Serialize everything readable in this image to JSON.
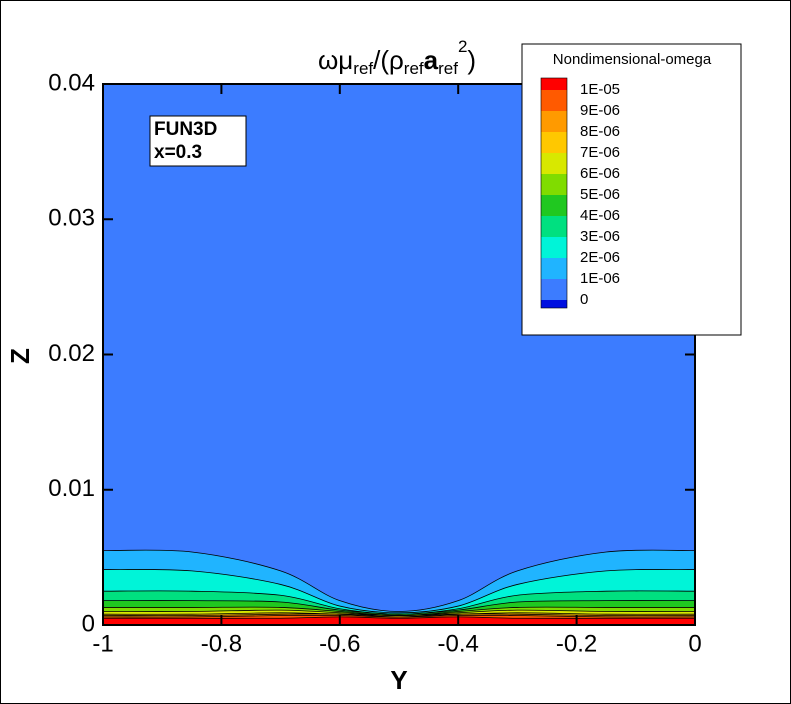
{
  "chart_data": {
    "type": "contour",
    "title_parts": [
      "ωμ",
      "ref",
      "/(ρ",
      "ref",
      "a",
      "ref",
      "2",
      ")"
    ],
    "x_label": "Y",
    "y_label": "Z",
    "xlim": [
      -1,
      0
    ],
    "ylim": [
      0,
      0.04
    ],
    "xticks": [
      -1,
      -0.8,
      -0.6,
      -0.4,
      -0.2,
      0
    ],
    "yticks": [
      0,
      0.01,
      0.02,
      0.03,
      0.04
    ],
    "annotation": [
      "FUN3D",
      "x=0.3"
    ],
    "legend_title": "Nondimensional-omega",
    "over_color": "#ff0000",
    "x": [
      -1,
      -0.85,
      -0.7,
      -0.6,
      -0.5,
      -0.4,
      -0.3,
      -0.15,
      0
    ],
    "levels": [
      {
        "value": 1e-05,
        "label": "1E-05",
        "color": "#ff5a00",
        "z": [
          0.0005,
          0.0005,
          0.0005,
          0.0006,
          0.0005,
          0.0006,
          0.0005,
          0.0005,
          0.0005
        ]
      },
      {
        "value": 9e-06,
        "label": "9E-06",
        "color": "#ff9a00",
        "z": [
          0.0006,
          0.0006,
          0.0007,
          0.0007,
          0.0006,
          0.0007,
          0.0007,
          0.0006,
          0.0006
        ]
      },
      {
        "value": 8e-06,
        "label": "8E-06",
        "color": "#ffc800",
        "z": [
          0.0007,
          0.0007,
          0.0008,
          0.0008,
          0.0006,
          0.0008,
          0.0008,
          0.0007,
          0.0007
        ]
      },
      {
        "value": 7e-06,
        "label": "7E-06",
        "color": "#d8e800",
        "z": [
          0.0008,
          0.0008,
          0.0009,
          0.0008,
          0.0007,
          0.0008,
          0.0009,
          0.0008,
          0.0008
        ]
      },
      {
        "value": 6e-06,
        "label": "6E-06",
        "color": "#80dc00",
        "z": [
          0.001,
          0.001,
          0.0011,
          0.0009,
          0.0007,
          0.0009,
          0.0011,
          0.001,
          0.001
        ]
      },
      {
        "value": 5e-06,
        "label": "5E-06",
        "color": "#20c820",
        "z": [
          0.0013,
          0.0013,
          0.0013,
          0.001,
          0.0007,
          0.001,
          0.0013,
          0.0013,
          0.0013
        ]
      },
      {
        "value": 4e-06,
        "label": "4E-06",
        "color": "#00e080",
        "z": [
          0.0018,
          0.0018,
          0.0017,
          0.0011,
          0.0008,
          0.0011,
          0.0017,
          0.0018,
          0.0018
        ]
      },
      {
        "value": 3e-06,
        "label": "3E-06",
        "color": "#00f4d8",
        "z": [
          0.0025,
          0.0025,
          0.0022,
          0.0012,
          0.0008,
          0.0012,
          0.0022,
          0.0025,
          0.0025
        ]
      },
      {
        "value": 2e-06,
        "label": "2E-06",
        "color": "#20b4ff",
        "z": [
          0.0041,
          0.004,
          0.003,
          0.0014,
          0.0009,
          0.0014,
          0.003,
          0.004,
          0.0041
        ]
      },
      {
        "value": 1e-06,
        "label": "1E-06",
        "color": "#3c7cff",
        "z": [
          0.0055,
          0.0054,
          0.004,
          0.0018,
          0.001,
          0.0018,
          0.004,
          0.0054,
          0.0055
        ]
      },
      {
        "value": 0,
        "label": "0",
        "color": "#0010e0"
      }
    ]
  }
}
